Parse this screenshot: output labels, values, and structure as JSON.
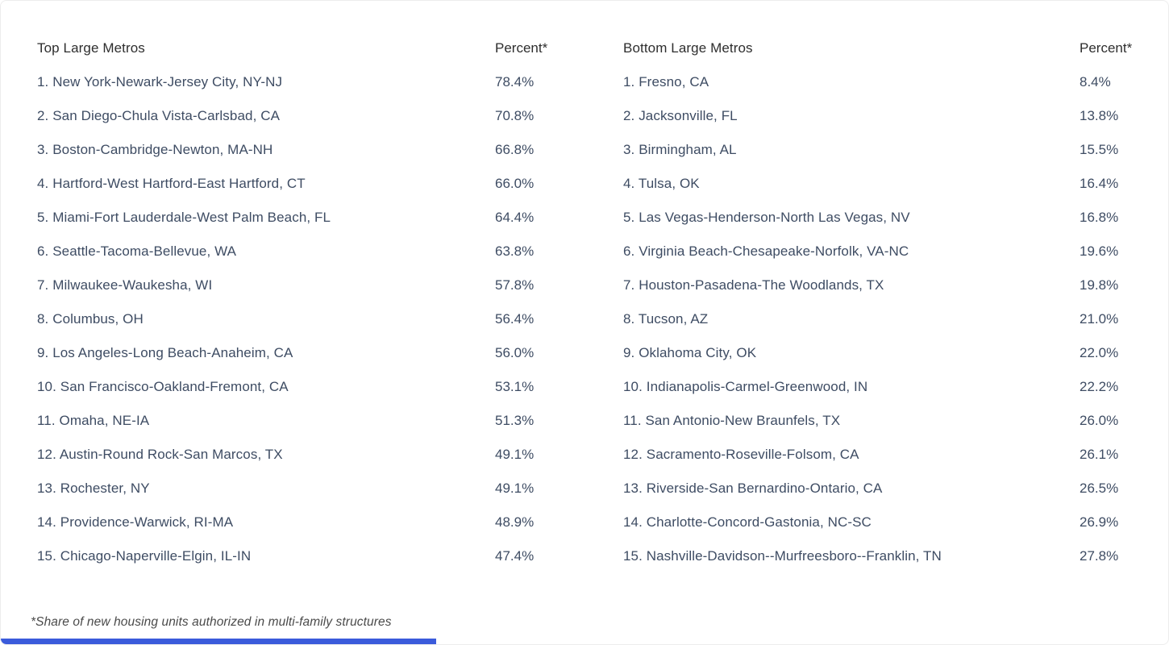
{
  "page": {
    "background_color": "#ffffff",
    "row_text_color": "#3e4c63",
    "header_text_color": "#2e2e2e",
    "accent_bar_color": "#3b5bdb"
  },
  "tables": [
    {
      "id": "top-metros",
      "header": {
        "label": "Top Large Metros",
        "percent": "Percent*"
      },
      "rows": [
        {
          "label": "1. New York-Newark-Jersey City, NY-NJ",
          "percent": "78.4%"
        },
        {
          "label": "2. San Diego-Chula Vista-Carlsbad, CA",
          "percent": "70.8%"
        },
        {
          "label": "3. Boston-Cambridge-Newton, MA-NH",
          "percent": "66.8%"
        },
        {
          "label": "4. Hartford-West Hartford-East Hartford, CT",
          "percent": "66.0%"
        },
        {
          "label": "5. Miami-Fort Lauderdale-West Palm Beach, FL",
          "percent": "64.4%"
        },
        {
          "label": "6. Seattle-Tacoma-Bellevue, WA",
          "percent": "63.8%"
        },
        {
          "label": "7. Milwaukee-Waukesha, WI",
          "percent": "57.8%"
        },
        {
          "label": "8. Columbus, OH",
          "percent": "56.4%"
        },
        {
          "label": "9. Los Angeles-Long Beach-Anaheim, CA",
          "percent": "56.0%"
        },
        {
          "label": "10. San Francisco-Oakland-Fremont, CA",
          "percent": "53.1%"
        },
        {
          "label": "11. Omaha, NE-IA",
          "percent": "51.3%"
        },
        {
          "label": "12. Austin-Round Rock-San Marcos, TX",
          "percent": "49.1%"
        },
        {
          "label": "13. Rochester, NY",
          "percent": "49.1%"
        },
        {
          "label": "14. Providence-Warwick, RI-MA",
          "percent": "48.9%"
        },
        {
          "label": "15. Chicago-Naperville-Elgin, IL-IN",
          "percent": "47.4%"
        }
      ]
    },
    {
      "id": "bottom-metros",
      "header": {
        "label": "Bottom Large Metros",
        "percent": "Percent*"
      },
      "rows": [
        {
          "label": "1. Fresno, CA",
          "percent": "8.4%"
        },
        {
          "label": "2. Jacksonville, FL",
          "percent": "13.8%"
        },
        {
          "label": "3. Birmingham, AL",
          "percent": "15.5%"
        },
        {
          "label": "4. Tulsa, OK",
          "percent": "16.4%"
        },
        {
          "label": "5. Las Vegas-Henderson-North Las Vegas, NV",
          "percent": "16.8%"
        },
        {
          "label": "6. Virginia Beach-Chesapeake-Norfolk, VA-NC",
          "percent": "19.6%"
        },
        {
          "label": "7. Houston-Pasadena-The Woodlands, TX",
          "percent": "19.8%"
        },
        {
          "label": "8. Tucson, AZ",
          "percent": "21.0%"
        },
        {
          "label": "9. Oklahoma City, OK",
          "percent": "22.0%"
        },
        {
          "label": "10. Indianapolis-Carmel-Greenwood, IN",
          "percent": "22.2%"
        },
        {
          "label": "11. San Antonio-New Braunfels, TX",
          "percent": "26.0%"
        },
        {
          "label": "12. Sacramento-Roseville-Folsom, CA",
          "percent": "26.1%"
        },
        {
          "label": "13. Riverside-San Bernardino-Ontario, CA",
          "percent": "26.5%"
        },
        {
          "label": "14. Charlotte-Concord-Gastonia, NC-SC",
          "percent": "26.9%"
        },
        {
          "label": "15. Nashville-Davidson--Murfreesboro--Franklin, TN",
          "percent": "27.8%"
        }
      ]
    }
  ],
  "footnote": "*Share of new housing units authorized in multi-family structures",
  "chart_data": [
    {
      "type": "table",
      "title": "Top Large Metros",
      "columns": [
        "Metro",
        "Percent*"
      ],
      "rows": [
        [
          "New York-Newark-Jersey City, NY-NJ",
          78.4
        ],
        [
          "San Diego-Chula Vista-Carlsbad, CA",
          70.8
        ],
        [
          "Boston-Cambridge-Newton, MA-NH",
          66.8
        ],
        [
          "Hartford-West Hartford-East Hartford, CT",
          66.0
        ],
        [
          "Miami-Fort Lauderdale-West Palm Beach, FL",
          64.4
        ],
        [
          "Seattle-Tacoma-Bellevue, WA",
          63.8
        ],
        [
          "Milwaukee-Waukesha, WI",
          57.8
        ],
        [
          "Columbus, OH",
          56.4
        ],
        [
          "Los Angeles-Long Beach-Anaheim, CA",
          56.0
        ],
        [
          "San Francisco-Oakland-Fremont, CA",
          53.1
        ],
        [
          "Omaha, NE-IA",
          51.3
        ],
        [
          "Austin-Round Rock-San Marcos, TX",
          49.1
        ],
        [
          "Rochester, NY",
          49.1
        ],
        [
          "Providence-Warwick, RI-MA",
          48.9
        ],
        [
          "Chicago-Naperville-Elgin, IL-IN",
          47.4
        ]
      ],
      "footnote": "*Share of new housing units authorized in multi-family structures"
    },
    {
      "type": "table",
      "title": "Bottom Large Metros",
      "columns": [
        "Metro",
        "Percent*"
      ],
      "rows": [
        [
          "Fresno, CA",
          8.4
        ],
        [
          "Jacksonville, FL",
          13.8
        ],
        [
          "Birmingham, AL",
          15.5
        ],
        [
          "Tulsa, OK",
          16.4
        ],
        [
          "Las Vegas-Henderson-North Las Vegas, NV",
          16.8
        ],
        [
          "Virginia Beach-Chesapeake-Norfolk, VA-NC",
          19.6
        ],
        [
          "Houston-Pasadena-The Woodlands, TX",
          19.8
        ],
        [
          "Tucson, AZ",
          21.0
        ],
        [
          "Oklahoma City, OK",
          22.0
        ],
        [
          "Indianapolis-Carmel-Greenwood, IN",
          22.2
        ],
        [
          "San Antonio-New Braunfels, TX",
          26.0
        ],
        [
          "Sacramento-Roseville-Folsom, CA",
          26.1
        ],
        [
          "Riverside-San Bernardino-Ontario, CA",
          26.5
        ],
        [
          "Charlotte-Concord-Gastonia, NC-SC",
          26.9
        ],
        [
          "Nashville-Davidson--Murfreesboro--Franklin, TN",
          27.8
        ]
      ],
      "footnote": "*Share of new housing units authorized in multi-family structures"
    }
  ]
}
